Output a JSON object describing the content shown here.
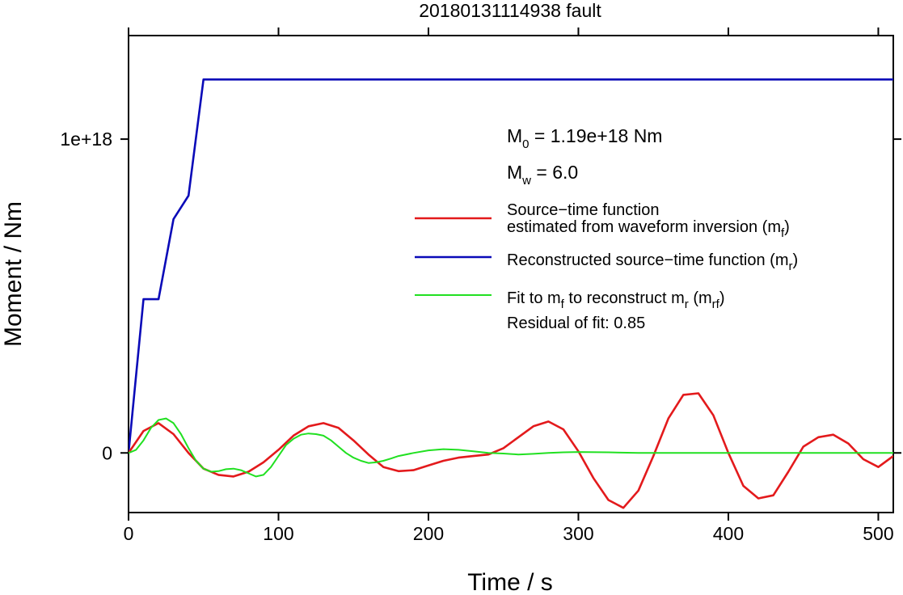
{
  "chart_data": {
    "type": "line",
    "title": "20180131114938 fault",
    "xlabel": "Time / s",
    "ylabel": "Moment / Nm",
    "xlim": [
      0,
      510
    ],
    "ylim": [
      -1.9e+17,
      1.33e+18
    ],
    "x_ticks": [
      0,
      100,
      200,
      300,
      400,
      500
    ],
    "x_tick_labels": [
      "0",
      "100",
      "200",
      "300",
      "400",
      "500"
    ],
    "y_ticks": [
      0,
      1e+18
    ],
    "y_tick_labels": [
      "0",
      "1e+18"
    ],
    "grid": false,
    "legend_placement": "right",
    "annotations": {
      "m0": {
        "main": "M",
        "sub": "0",
        "rest": " = 1.19e+18 Nm"
      },
      "mw": {
        "main": "M",
        "sub": "w",
        "rest": " = 6.0"
      },
      "residual": "Residual of fit: 0.85"
    },
    "series": [
      {
        "id": "mf",
        "color": "#e31a1c",
        "legend_lines": [
          {
            "text": "Source−time function"
          },
          {
            "text": "estimated from waveform inversion (m",
            "sub": "f",
            "after": ")"
          }
        ],
        "x": [
          0,
          10,
          20,
          30,
          40,
          50,
          60,
          70,
          80,
          90,
          100,
          110,
          120,
          130,
          140,
          150,
          160,
          170,
          180,
          190,
          200,
          210,
          220,
          230,
          240,
          250,
          260,
          270,
          280,
          290,
          300,
          310,
          320,
          330,
          340,
          350,
          360,
          370,
          380,
          390,
          400,
          410,
          420,
          430,
          440,
          450,
          460,
          470,
          480,
          490,
          500,
          510
        ],
        "y": [
          0,
          7e+16,
          9.5e+16,
          6e+16,
          0,
          -5e+16,
          -7e+16,
          -7.5e+16,
          -6e+16,
          -3e+16,
          1e+16,
          5.5e+16,
          8.5e+16,
          9.5e+16,
          8e+16,
          4e+16,
          -5000000000000000.0,
          -4.5e+16,
          -5.8e+16,
          -5.5e+16,
          -4e+16,
          -2.5e+16,
          -1.5e+16,
          -1e+16,
          -5000000000000000.0,
          1.5e+16,
          5e+16,
          8.5e+16,
          1e+17,
          7.5e+16,
          5000000000000000.0,
          -8e+16,
          -1.5e+17,
          -1.75e+17,
          -1.2e+17,
          -1e+16,
          1.1e+17,
          1.85e+17,
          1.9e+17,
          1.2e+17,
          0,
          -1.05e+17,
          -1.45e+17,
          -1.35e+17,
          -6e+16,
          2e+16,
          5e+16,
          5.8e+16,
          3e+16,
          -2e+16,
          -4.5e+16,
          -1e+16
        ]
      },
      {
        "id": "mr",
        "color": "#0a0ab8",
        "legend_lines": [
          {
            "text": "Reconstructed source−time function (m",
            "sub": "r",
            "after": ")"
          }
        ],
        "x": [
          0,
          10,
          20,
          30,
          40,
          50,
          510
        ],
        "y": [
          0,
          4.9e+17,
          4.9e+17,
          7.45e+17,
          8.2e+17,
          1.19e+18,
          1.19e+18
        ]
      },
      {
        "id": "mrf",
        "color": "#21e021",
        "legend_lines": [
          {
            "text": "Fit to m",
            "sub": "f",
            "after": " to reconstruct m"
          },
          {
            "text": "",
            "sub": "r",
            "after": " (m"
          },
          {
            "text": "",
            "sub": "rf",
            "after": ")"
          }
        ],
        "x": [
          0,
          5,
          10,
          15,
          20,
          25,
          30,
          35,
          40,
          45,
          50,
          55,
          60,
          65,
          70,
          75,
          80,
          85,
          90,
          95,
          100,
          105,
          110,
          115,
          120,
          125,
          130,
          135,
          140,
          145,
          150,
          155,
          160,
          165,
          170,
          175,
          180,
          190,
          200,
          210,
          220,
          230,
          240,
          250,
          260,
          270,
          280,
          290,
          300,
          320,
          340,
          360,
          380,
          400,
          450,
          510
        ],
        "y": [
          0,
          1e+16,
          4e+16,
          8e+16,
          1.05e+17,
          1.1e+17,
          9.5e+16,
          6e+16,
          1.5e+16,
          -2.5e+16,
          -5e+16,
          -6e+16,
          -5.8e+16,
          -5.2e+16,
          -5e+16,
          -5.5e+16,
          -6.5e+16,
          -7.5e+16,
          -7e+16,
          -4.5e+16,
          -1e+16,
          2.5e+16,
          4.5e+16,
          5.8e+16,
          6.2e+16,
          6e+16,
          5.5e+16,
          4e+16,
          2e+16,
          0,
          -1.5e+16,
          -2.5e+16,
          -3.2e+16,
          -3e+16,
          -2.5e+16,
          -1.8e+16,
          -1e+16,
          0,
          8000000000000000.0,
          1.2e+16,
          1e+16,
          5000000000000000.0,
          0,
          -2000000000000000.0,
          -5000000000000000.0,
          -3000000000000000.0,
          0,
          2000000000000000.0,
          3000000000000000.0,
          2000000000000000.0,
          0,
          0,
          0,
          0,
          0,
          0
        ]
      }
    ]
  }
}
